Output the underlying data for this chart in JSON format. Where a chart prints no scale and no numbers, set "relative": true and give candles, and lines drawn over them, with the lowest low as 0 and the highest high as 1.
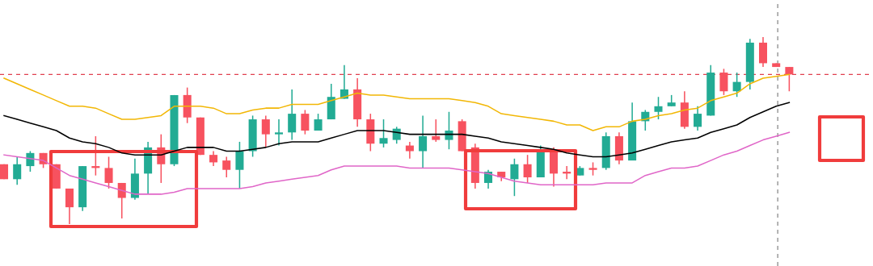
{
  "chart_data": {
    "type": "candlestick",
    "relative": true,
    "categories": [
      null,
      null,
      null,
      null,
      null,
      null,
      null,
      null,
      null,
      null,
      null,
      null,
      null,
      null,
      null,
      null,
      null,
      null,
      null,
      null,
      null,
      null,
      null,
      null,
      null,
      null,
      null,
      null,
      null,
      null,
      null,
      null,
      null,
      null,
      null,
      null,
      null,
      null,
      null,
      null,
      null,
      null,
      null,
      null,
      null,
      null,
      null,
      null,
      null,
      null,
      null,
      null,
      null,
      null,
      null,
      null,
      null,
      null,
      null,
      null,
      null
    ],
    "ohlc": [
      [
        0.32,
        0.32,
        0.24,
        0.24
      ],
      [
        0.24,
        0.36,
        0.21,
        0.32
      ],
      [
        0.31,
        0.39,
        0.28,
        0.38
      ],
      [
        0.38,
        0.38,
        0.3,
        0.32
      ],
      [
        0.32,
        0.32,
        0.19,
        0.19
      ],
      [
        0.19,
        0.19,
        0,
        0.09
      ],
      [
        0.09,
        0.31,
        0.07,
        0.31
      ],
      [
        0.31,
        0.47,
        0.26,
        0.3
      ],
      [
        0.3,
        0.36,
        0.19,
        0.22
      ],
      [
        0.22,
        0.22,
        0.03,
        0.14
      ],
      [
        0.14,
        0.35,
        0.13,
        0.27
      ],
      [
        0.27,
        0.44,
        0.16,
        0.41
      ],
      [
        0.41,
        0.48,
        0.22,
        0.32
      ],
      [
        0.32,
        0.69,
        0.31,
        0.69
      ],
      [
        0.69,
        0.73,
        0.54,
        0.57
      ],
      [
        0.57,
        0.57,
        0.37,
        0.37
      ],
      [
        0.37,
        0.39,
        0.31,
        0.33
      ],
      [
        0.34,
        0.36,
        0.25,
        0.29
      ],
      [
        0.29,
        0.44,
        0.19,
        0.39
      ],
      [
        0.39,
        0.58,
        0.36,
        0.56
      ],
      [
        0.56,
        0.58,
        0.41,
        0.48
      ],
      [
        0.48,
        0.56,
        0.42,
        0.49
      ],
      [
        0.49,
        0.72,
        0.45,
        0.59
      ],
      [
        0.59,
        0.61,
        0.48,
        0.5
      ],
      [
        0.5,
        0.59,
        0.5,
        0.56
      ],
      [
        0.56,
        0.75,
        0.56,
        0.68
      ],
      [
        0.67,
        0.85,
        0.67,
        0.72
      ],
      [
        0.72,
        0.78,
        0.52,
        0.56
      ],
      [
        0.56,
        0.59,
        0.39,
        0.43
      ],
      [
        0.43,
        0.56,
        0.41,
        0.46
      ],
      [
        0.45,
        0.52,
        0.43,
        0.51
      ],
      [
        0.42,
        0.44,
        0.35,
        0.39
      ],
      [
        0.39,
        0.58,
        0.3,
        0.47
      ],
      [
        0.47,
        0.56,
        0.44,
        0.45
      ],
      [
        0.45,
        0.6,
        0.4,
        0.5
      ],
      [
        0.55,
        0.56,
        0.39,
        0.39
      ],
      [
        0.41,
        0.43,
        0.19,
        0.22
      ],
      [
        0.22,
        0.29,
        0.19,
        0.28
      ],
      [
        0.28,
        0.28,
        0.23,
        0.25
      ],
      [
        0.24,
        0.35,
        0.15,
        0.32
      ],
      [
        0.32,
        0.37,
        0.22,
        0.25
      ],
      [
        0.25,
        0.42,
        0.25,
        0.4
      ],
      [
        0.4,
        0.41,
        0.2,
        0.27
      ],
      [
        0.28,
        0.31,
        0.24,
        0.27
      ],
      [
        0.26,
        0.31,
        0.26,
        0.3
      ],
      [
        0.3,
        0.33,
        0.26,
        0.29
      ],
      [
        0.3,
        0.49,
        0.29,
        0.47
      ],
      [
        0.47,
        0.49,
        0.32,
        0.34
      ],
      [
        0.34,
        0.65,
        0.34,
        0.55
      ],
      [
        0.55,
        0.61,
        0.5,
        0.6
      ],
      [
        0.6,
        0.68,
        0.56,
        0.63
      ],
      [
        0.63,
        0.69,
        0.63,
        0.65
      ],
      [
        0.65,
        0.71,
        0.51,
        0.52
      ],
      [
        0.52,
        0.63,
        0.5,
        0.59
      ],
      [
        0.58,
        0.85,
        0.58,
        0.81
      ],
      [
        0.81,
        0.83,
        0.69,
        0.71
      ],
      [
        0.71,
        0.81,
        0.68,
        0.76
      ],
      [
        0.76,
        0.99,
        0.72,
        0.97
      ],
      [
        0.97,
        1,
        0.84,
        0.86
      ],
      [
        0.86,
        0.86,
        0.84,
        0.84
      ],
      [
        0.84,
        0.84,
        0.71,
        0.8
      ]
    ],
    "colors": [
      "#f7525f",
      "#22ab94",
      "#22ab94",
      "#f7525f",
      "#f7525f",
      "#f7525f",
      "#22ab94",
      "#f7525f",
      "#f7525f",
      "#f7525f",
      "#22ab94",
      "#22ab94",
      "#f7525f",
      "#22ab94",
      "#f7525f",
      "#f7525f",
      "#f7525f",
      "#f7525f",
      "#22ab94",
      "#22ab94",
      "#f7525f",
      "#22ab94",
      "#22ab94",
      "#f7525f",
      "#22ab94",
      "#22ab94",
      "#22ab94",
      "#f7525f",
      "#f7525f",
      "#22ab94",
      "#22ab94",
      "#f7525f",
      "#22ab94",
      "#f7525f",
      "#22ab94",
      "#f7525f",
      "#f7525f",
      "#22ab94",
      "#f7525f",
      "#22ab94",
      "#f7525f",
      "#22ab94",
      "#f7525f",
      "#f7525f",
      "#22ab94",
      "#f7525f",
      "#22ab94",
      "#f7525f",
      "#22ab94",
      "#22ab94",
      "#22ab94",
      "#22ab94",
      "#f7525f",
      "#22ab94",
      "#22ab94",
      "#f7525f",
      "#22ab94",
      "#22ab94",
      "#f7525f",
      "#f7525f",
      "#f7525f"
    ],
    "series": [
      {
        "type": "line",
        "color": "#f2b705",
        "values": [
          0.78,
          0.75,
          0.72,
          0.69,
          0.66,
          0.63,
          0.63,
          0.62,
          0.59,
          0.56,
          0.56,
          0.57,
          0.58,
          0.63,
          0.63,
          0.63,
          0.62,
          0.59,
          0.59,
          0.61,
          0.62,
          0.62,
          0.64,
          0.64,
          0.64,
          0.66,
          0.68,
          0.7,
          0.69,
          0.69,
          0.68,
          0.67,
          0.67,
          0.67,
          0.67,
          0.66,
          0.65,
          0.63,
          0.59,
          0.58,
          0.57,
          0.56,
          0.55,
          0.53,
          0.53,
          0.5,
          0.52,
          0.52,
          0.55,
          0.56,
          0.58,
          0.59,
          0.61,
          0.62,
          0.66,
          0.68,
          0.7,
          0.75,
          0.78,
          0.79,
          0.8
        ]
      },
      {
        "type": "line",
        "color": "#000000",
        "values": [
          0.58,
          0.56,
          0.54,
          0.52,
          0.5,
          0.46,
          0.44,
          0.43,
          0.41,
          0.38,
          0.37,
          0.37,
          0.37,
          0.39,
          0.41,
          0.41,
          0.41,
          0.39,
          0.39,
          0.4,
          0.41,
          0.43,
          0.44,
          0.44,
          0.44,
          0.46,
          0.48,
          0.5,
          0.5,
          0.5,
          0.49,
          0.48,
          0.48,
          0.48,
          0.48,
          0.48,
          0.47,
          0.46,
          0.44,
          0.43,
          0.42,
          0.41,
          0.4,
          0.38,
          0.37,
          0.36,
          0.36,
          0.37,
          0.38,
          0.4,
          0.42,
          0.44,
          0.45,
          0.46,
          0.49,
          0.51,
          0.53,
          0.57,
          0.6,
          0.63,
          0.65
        ]
      },
      {
        "type": "line",
        "color": "#e066c8",
        "values": [
          0.37,
          0.36,
          0.35,
          0.34,
          0.3,
          0.26,
          0.24,
          0.22,
          0.2,
          0.18,
          0.16,
          0.16,
          0.16,
          0.17,
          0.19,
          0.19,
          0.19,
          0.19,
          0.19,
          0.2,
          0.22,
          0.23,
          0.24,
          0.25,
          0.26,
          0.29,
          0.31,
          0.31,
          0.31,
          0.31,
          0.31,
          0.3,
          0.3,
          0.3,
          0.3,
          0.29,
          0.28,
          0.27,
          0.25,
          0.23,
          0.22,
          0.21,
          0.21,
          0.21,
          0.21,
          0.21,
          0.22,
          0.22,
          0.22,
          0.26,
          0.28,
          0.3,
          0.3,
          0.31,
          0.34,
          0.37,
          0.39,
          0.42,
          0.45,
          0.47,
          0.49
        ]
      }
    ],
    "ref_lines": [
      {
        "axis": "y",
        "value": 0.8,
        "color": "#e0404f",
        "line_style": "dashed"
      }
    ],
    "line_style": "solid"
  }
}
